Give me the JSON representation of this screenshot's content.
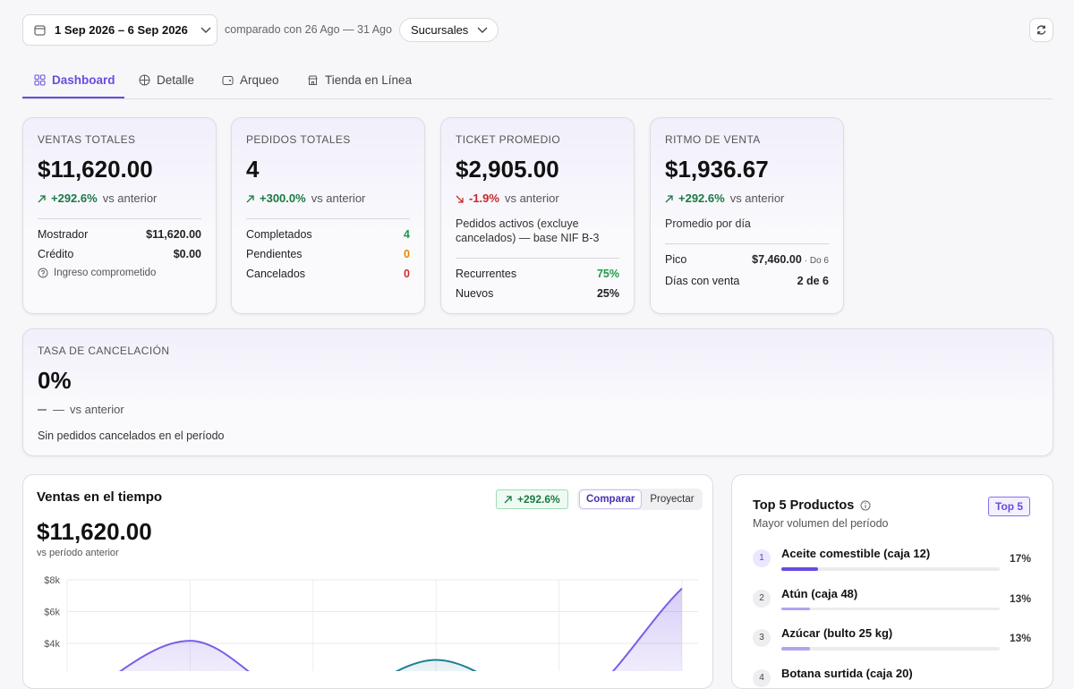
{
  "header": {
    "date_range": "1 Sep 2026 – 6 Sep 2026",
    "comparison": "comparado con 26 Ago — 31 Ago",
    "branch_filter": "Sucursales"
  },
  "tabs": [
    {
      "label": "Dashboard",
      "active": true
    },
    {
      "label": "Detalle"
    },
    {
      "label": "Arqueo"
    },
    {
      "label": "Tienda en Línea"
    }
  ],
  "kpis": [
    {
      "label": "VENTAS TOTALES",
      "value": "$11,620.00",
      "delta": "+292.6%",
      "trend": "up",
      "delta_suffix": "vs anterior",
      "rows": [
        {
          "label": "Mostrador",
          "value": "$11,620.00"
        },
        {
          "label": "Crédito",
          "value": "$0.00"
        }
      ],
      "note": "Ingreso comprometido"
    },
    {
      "label": "PEDIDOS TOTALES",
      "value": "4",
      "delta": "+300.0%",
      "trend": "up",
      "delta_suffix": "vs anterior",
      "rows": [
        {
          "label": "Completados",
          "value": "4",
          "tone": "green"
        },
        {
          "label": "Pendientes",
          "value": "0",
          "tone": "orange"
        },
        {
          "label": "Cancelados",
          "value": "0",
          "tone": "red"
        }
      ]
    },
    {
      "label": "TICKET PROMEDIO",
      "value": "$2,905.00",
      "delta": "-1.9%",
      "trend": "down",
      "delta_suffix": "vs anterior",
      "description": "Pedidos activos (excluye cancelados) — base NIF B-3",
      "rows": [
        {
          "label": "Recurrentes",
          "value": "75%",
          "tone": "green"
        },
        {
          "label": "Nuevos",
          "value": "25%"
        }
      ]
    },
    {
      "label": "RITMO DE VENTA",
      "value": "$1,936.67",
      "delta": "+292.6%",
      "trend": "up",
      "delta_suffix": "vs anterior",
      "description": "Promedio por día",
      "rows": [
        {
          "label": "Pico",
          "value": "$7,460.00",
          "detail": "· Do 6"
        },
        {
          "label": "Días con venta",
          "value": "2 de 6"
        }
      ]
    }
  ],
  "cancel_rate": {
    "label": "TASA DE CANCELACIÓN",
    "value": "0%",
    "delta": "—",
    "trend": "flat",
    "delta_suffix": "vs anterior",
    "description": "Sin pedidos cancelados en el período"
  },
  "sales_panel": {
    "title": "Ventas en el tiempo",
    "value": "$11,620.00",
    "subtitle": "vs período anterior",
    "badge": "+292.6%",
    "modes": [
      {
        "label": "Comparar",
        "active": true
      },
      {
        "label": "Proyectar"
      }
    ]
  },
  "chart_data": {
    "type": "line",
    "categories": [
      null,
      null,
      null,
      null,
      null,
      null
    ],
    "series": [
      {
        "color": "#7c5ce6",
        "values": [
          0,
          4160,
          0,
          0,
          0,
          7460
        ]
      },
      {
        "color": "#1f7f95",
        "values": [
          0,
          0,
          0,
          2960,
          0,
          0
        ]
      }
    ],
    "ylim": [
      0,
      8000
    ],
    "yticks": [
      {
        "value": 4000,
        "label": "$4k"
      },
      {
        "value": 6000,
        "label": "$6k"
      },
      {
        "value": 8000,
        "label": "$8k"
      }
    ],
    "grid": true
  },
  "top_products": {
    "title": "Top 5 Productos",
    "subtitle": "Mayor volumen del período",
    "badge": "Top 5",
    "items": [
      {
        "rank": 1,
        "name": "Aceite comestible (caja 12)",
        "share": 17,
        "share_label": "17%"
      },
      {
        "rank": 2,
        "name": "Atún (caja 48)",
        "share": 13,
        "share_label": "13%"
      },
      {
        "rank": 3,
        "name": "Azúcar (bulto 25 kg)",
        "share": 13,
        "share_label": "13%"
      },
      {
        "rank": 4,
        "name": "Botana surtida (caja 20)"
      }
    ]
  }
}
